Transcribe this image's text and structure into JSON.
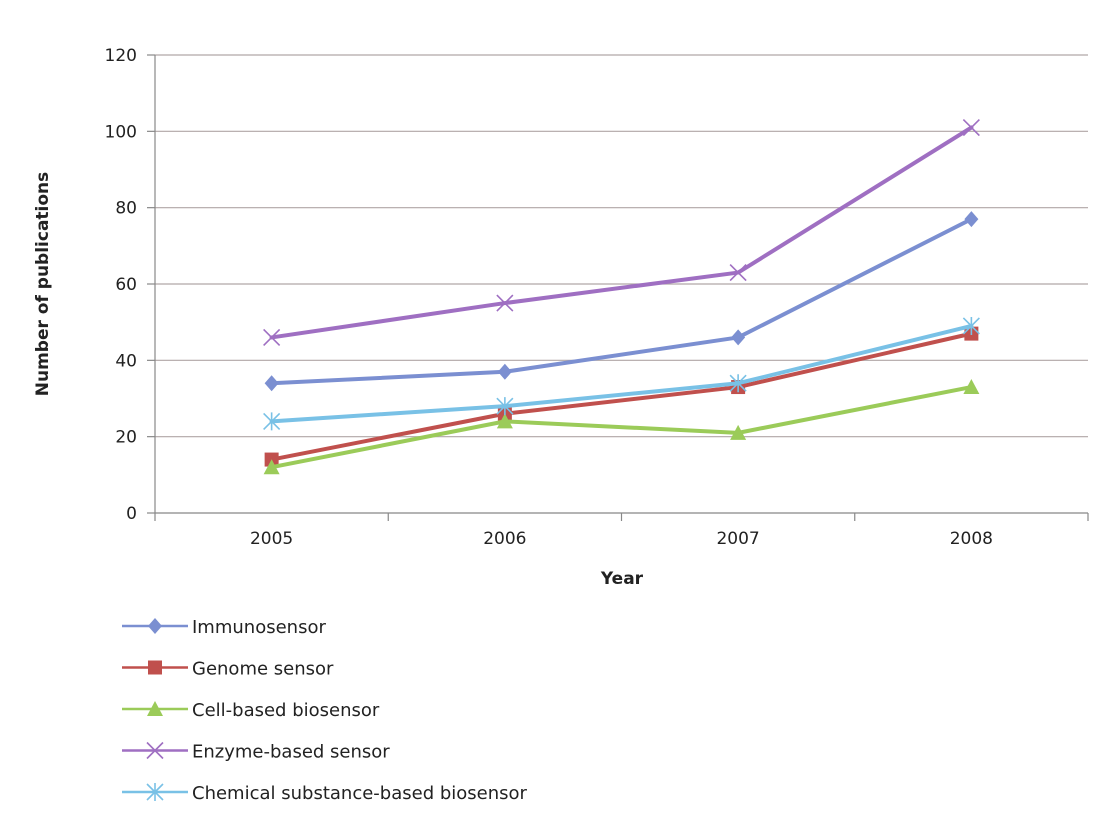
{
  "chart_data": {
    "type": "line",
    "title": "",
    "xlabel": "Year",
    "ylabel": "Number of publications",
    "categories": [
      "2005",
      "2006",
      "2007",
      "2008"
    ],
    "ylim": [
      0,
      120
    ],
    "yticks": [
      0,
      20,
      40,
      60,
      80,
      100,
      120
    ],
    "grid": true,
    "legend_position": "bottom",
    "series": [
      {
        "name": "Immunosensor",
        "values": [
          34,
          37,
          46,
          77
        ],
        "color": "#7b8fd1",
        "marker": "diamond"
      },
      {
        "name": "Genome sensor",
        "values": [
          14,
          26,
          33,
          47
        ],
        "color": "#c0504d",
        "marker": "square"
      },
      {
        "name": "Cell-based biosensor",
        "values": [
          12,
          24,
          21,
          33
        ],
        "color": "#9bcb59",
        "marker": "triangle"
      },
      {
        "name": "Enzyme-based sensor",
        "values": [
          46,
          55,
          63,
          101
        ],
        "color": "#9f6fc2",
        "marker": "x"
      },
      {
        "name": "Chemical substance-based biosensor",
        "values": [
          24,
          28,
          34,
          49
        ],
        "color": "#79c1e6",
        "marker": "star"
      }
    ]
  }
}
